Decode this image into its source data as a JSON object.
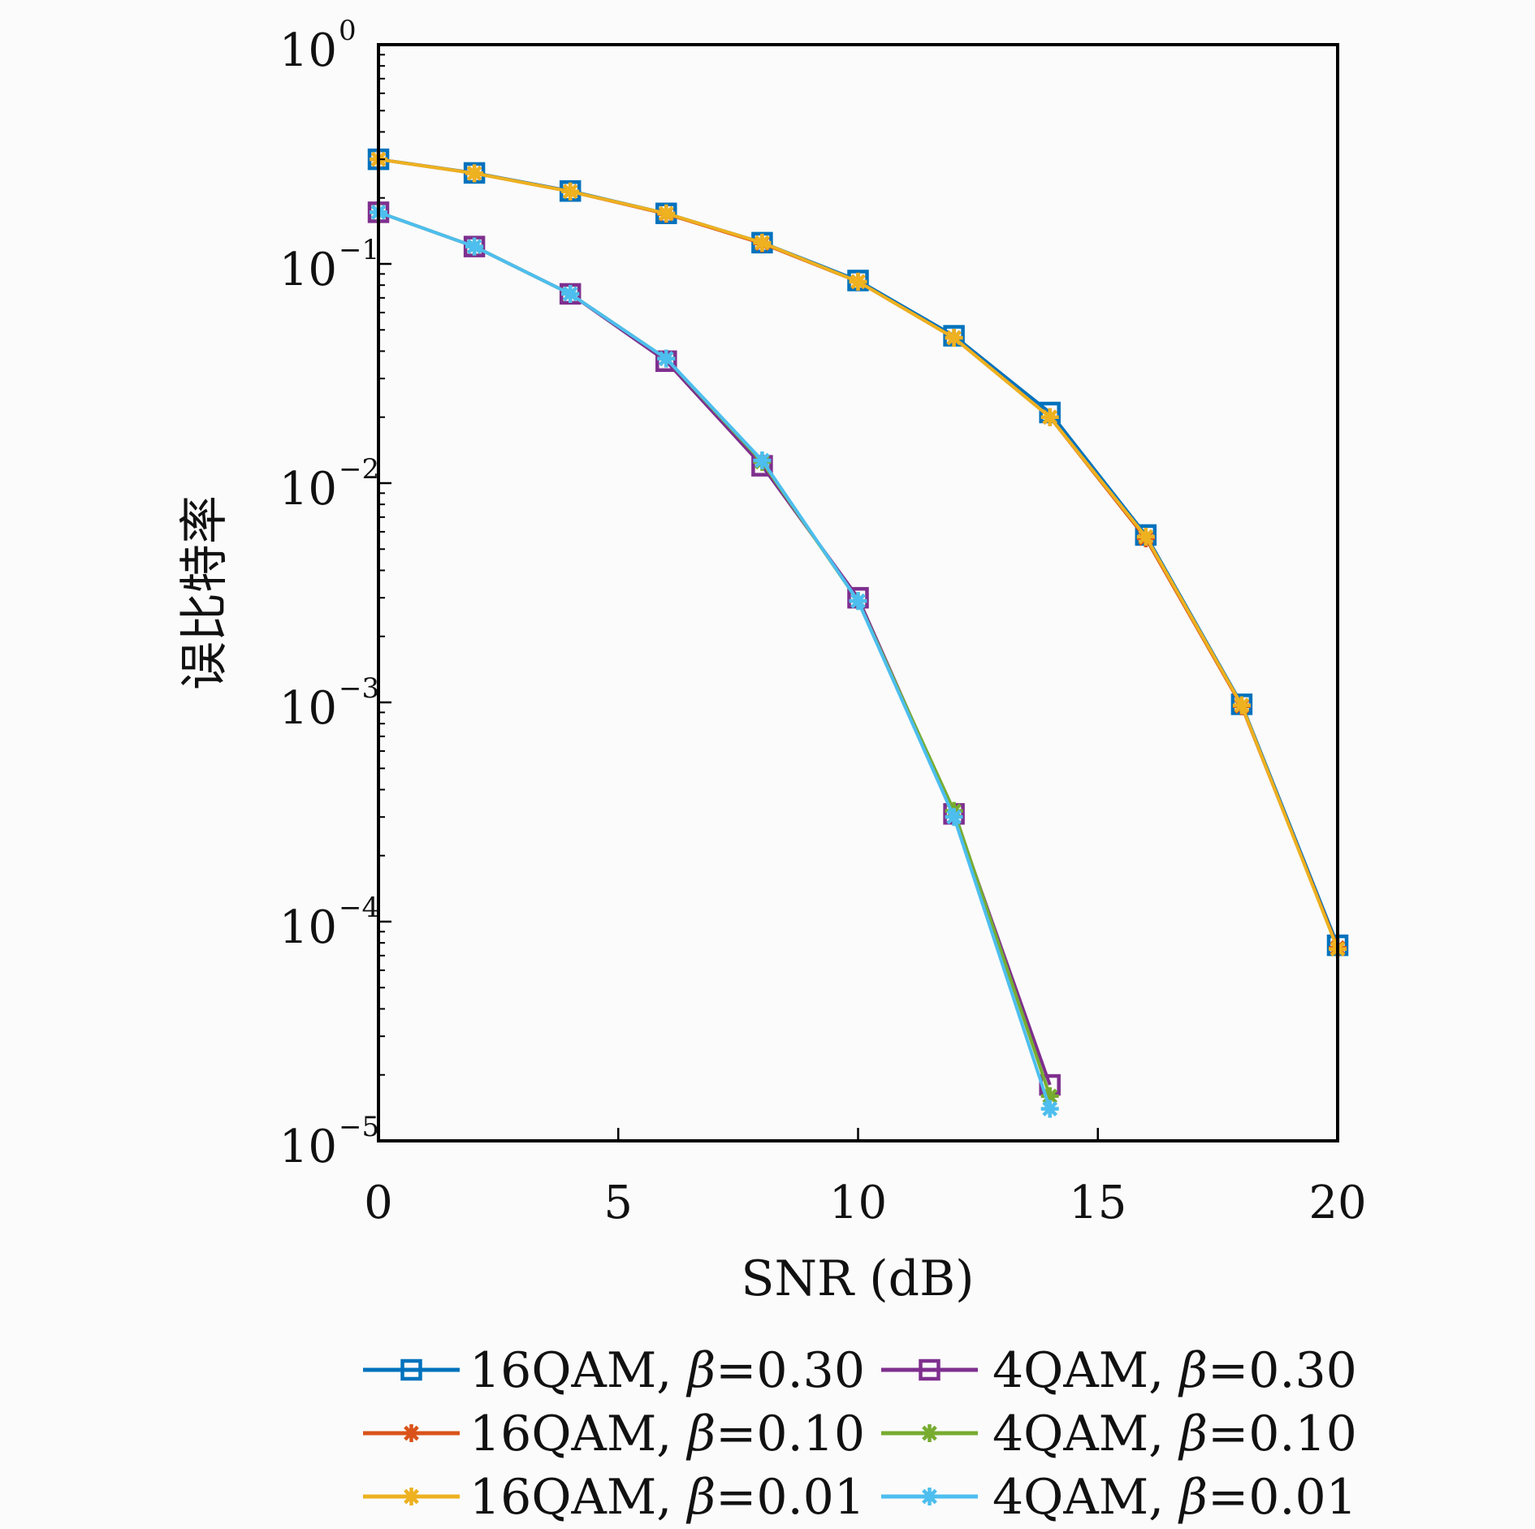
{
  "chart_data": {
    "type": "line",
    "xlabel": "SNR (dB)",
    "ylabel": "误比特率",
    "xlim": [
      0,
      20
    ],
    "ylim": [
      1e-05,
      1
    ],
    "yscale": "log",
    "grid": false,
    "legend_position": "bottom",
    "x_ticks": [
      "0",
      "5",
      "10",
      "15",
      "20"
    ],
    "y_ticks": [
      {
        "base": "10",
        "exp": "0"
      },
      {
        "base": "10",
        "exp": "−1"
      },
      {
        "base": "10",
        "exp": "−2"
      },
      {
        "base": "10",
        "exp": "−3"
      },
      {
        "base": "10",
        "exp": "−4"
      },
      {
        "base": "10",
        "exp": "−5"
      }
    ],
    "series": [
      {
        "name": "16QAM, β=0.30",
        "label_prefix": "16QAM, ",
        "label_beta": "β",
        "label_value": "=0.30",
        "color": "#0072bd",
        "marker": "square",
        "x": [
          0,
          2,
          4,
          6,
          8,
          10,
          12,
          14,
          16,
          18,
          20
        ],
        "y": [
          0.3,
          0.26,
          0.215,
          0.17,
          0.125,
          0.084,
          0.047,
          0.021,
          0.0058,
          0.00098,
          7.8e-05
        ]
      },
      {
        "name": "16QAM, β=0.10",
        "label_prefix": "16QAM, ",
        "label_beta": "β",
        "label_value": "=0.10",
        "color": "#d95319",
        "marker": "asterisk",
        "x": [
          0,
          2,
          4,
          6,
          8,
          10,
          12,
          14,
          16,
          18,
          20
        ],
        "y": [
          0.3,
          0.259,
          0.214,
          0.169,
          0.124,
          0.083,
          0.046,
          0.02,
          0.0056,
          0.00096,
          7.6e-05
        ]
      },
      {
        "name": "16QAM, β=0.01",
        "label_prefix": "16QAM, ",
        "label_beta": "β",
        "label_value": "=0.01",
        "color": "#edb120",
        "marker": "asterisk",
        "x": [
          0,
          2,
          4,
          6,
          8,
          10,
          12,
          14,
          16,
          18,
          20
        ],
        "y": [
          0.3,
          0.259,
          0.214,
          0.17,
          0.125,
          0.083,
          0.046,
          0.02,
          0.0057,
          0.00097,
          7.5e-05
        ]
      },
      {
        "name": "4QAM, β=0.30",
        "label_prefix": "4QAM, ",
        "label_beta": "β",
        "label_value": "=0.30",
        "color": "#7e2f8e",
        "marker": "square",
        "x": [
          0,
          2,
          4,
          6,
          8,
          10,
          12,
          14
        ],
        "y": [
          0.172,
          0.12,
          0.073,
          0.036,
          0.012,
          0.003,
          0.00031,
          1.8e-05
        ]
      },
      {
        "name": "4QAM, β=0.10",
        "label_prefix": "4QAM, ",
        "label_beta": "β",
        "label_value": "=0.10",
        "color": "#77ac30",
        "marker": "asterisk",
        "x": [
          0,
          2,
          4,
          6,
          8,
          10,
          12,
          14
        ],
        "y": [
          0.172,
          0.12,
          0.073,
          0.037,
          0.0125,
          0.0029,
          0.00032,
          1.6e-05
        ]
      },
      {
        "name": "4QAM, β=0.01",
        "label_prefix": "4QAM, ",
        "label_beta": "β",
        "label_value": "=0.01",
        "color": "#4dbeee",
        "marker": "asterisk",
        "x": [
          0,
          2,
          4,
          6,
          8,
          10,
          12,
          14
        ],
        "y": [
          0.172,
          0.12,
          0.073,
          0.037,
          0.0127,
          0.0029,
          0.0003,
          1.4e-05
        ]
      }
    ]
  }
}
